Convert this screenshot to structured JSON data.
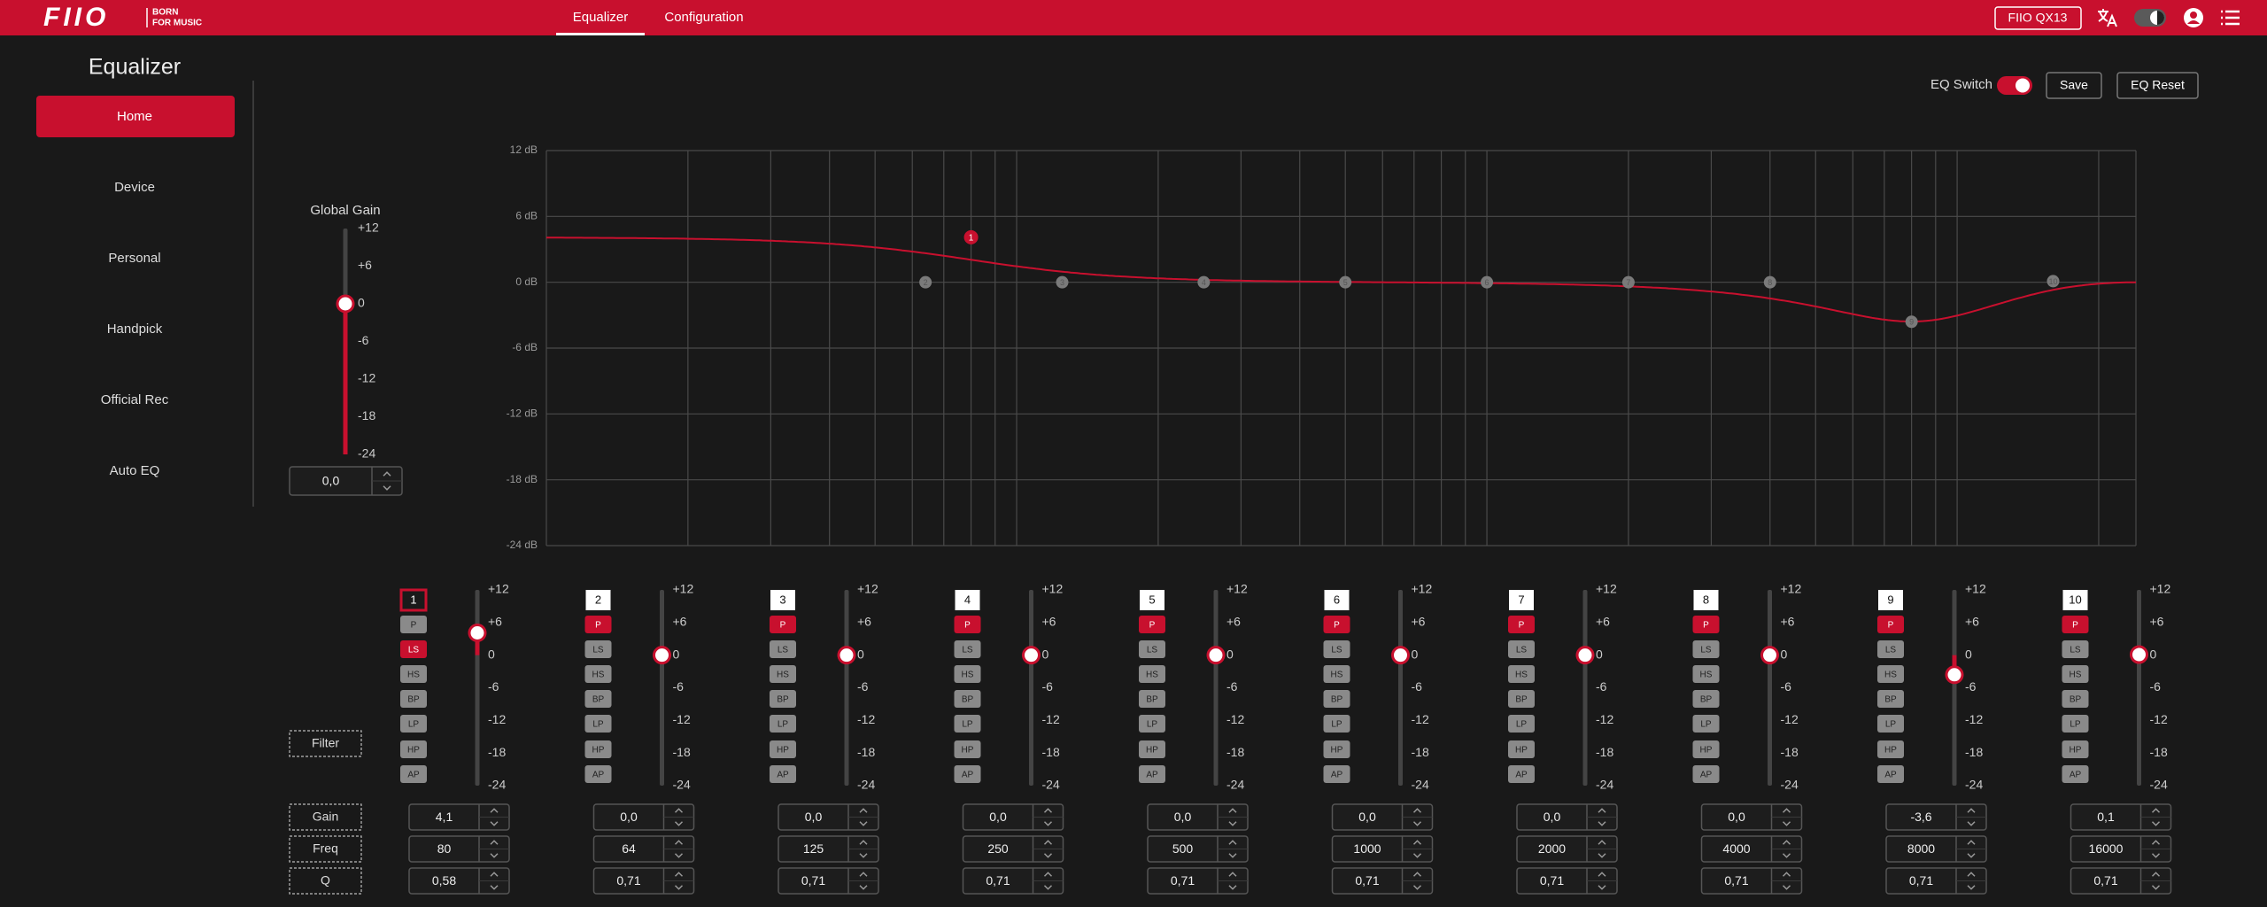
{
  "header": {
    "logo": "FIIO",
    "slogan": [
      "BORN",
      "FOR MUSIC"
    ],
    "tabs": [
      "Equalizer",
      "Configuration"
    ],
    "active_tab": "Equalizer",
    "device": "FIIO QX13"
  },
  "sidebar": {
    "title": "Equalizer",
    "items": [
      "Home",
      "Device",
      "Personal",
      "Handpick",
      "Official Rec",
      "Auto EQ"
    ],
    "active": "Home"
  },
  "toolbar": {
    "switch_label": "EQ Switch",
    "switch_on": true,
    "buttons": [
      "Save",
      "EQ Reset"
    ]
  },
  "global_gain": {
    "label": "Global Gain",
    "ticks": [
      {
        "value": 12,
        "label": "+12"
      },
      {
        "value": 6,
        "label": "+6"
      },
      0,
      -6,
      -12,
      -18,
      -24
    ],
    "value": {
      "value": 0,
      "label": "0,0"
    }
  },
  "graph": {
    "xlim": [
      10,
      24000
    ],
    "log_x": true,
    "yticks": [
      {
        "value": 12,
        "label": "12 dB"
      },
      {
        "value": 6,
        "label": "6 dB"
      },
      {
        "value": 0,
        "label": "0 dB"
      },
      {
        "value": -6,
        "label": "-6 dB"
      },
      {
        "value": -12,
        "label": "-12 dB"
      },
      {
        "value": -18,
        "label": "-18 dB"
      },
      {
        "value": -24,
        "label": "-24 dB"
      }
    ],
    "curve_color": "#c8102e"
  },
  "band_scale": {
    "ticks": [
      {
        "value": 12,
        "label": "+12"
      },
      {
        "value": 6,
        "label": "+6"
      },
      0,
      -6,
      -12,
      -18,
      -24
    ]
  },
  "row_labels": {
    "filter": "Filter",
    "gain": "Gain",
    "freq": "Freq",
    "q": "Q"
  },
  "filter_types": [
    "P",
    "LS",
    "HS",
    "BP",
    "LP",
    "HP",
    "AP"
  ],
  "selected_band": 1,
  "bands": [
    {
      "number": 1,
      "filter": "LS",
      "gain": {
        "value": 4.1,
        "label": "4,1"
      },
      "freq": 80,
      "q": {
        "value": 0.58,
        "label": "0,58"
      }
    },
    {
      "number": 2,
      "filter": "P",
      "gain": {
        "value": 0,
        "label": "0,0"
      },
      "freq": 64,
      "q": {
        "value": 0.71,
        "label": "0,71"
      }
    },
    {
      "number": 3,
      "filter": "P",
      "gain": {
        "value": 0,
        "label": "0,0"
      },
      "freq": 125,
      "q": {
        "value": 0.71,
        "label": "0,71"
      }
    },
    {
      "number": 4,
      "filter": "P",
      "gain": {
        "value": 0,
        "label": "0,0"
      },
      "freq": 250,
      "q": {
        "value": 0.71,
        "label": "0,71"
      }
    },
    {
      "number": 5,
      "filter": "P",
      "gain": {
        "value": 0,
        "label": "0,0"
      },
      "freq": 500,
      "q": {
        "value": 0.71,
        "label": "0,71"
      }
    },
    {
      "number": 6,
      "filter": "P",
      "gain": {
        "value": 0,
        "label": "0,0"
      },
      "freq": 1000,
      "q": {
        "value": 0.71,
        "label": "0,71"
      }
    },
    {
      "number": 7,
      "filter": "P",
      "gain": {
        "value": 0,
        "label": "0,0"
      },
      "freq": 2000,
      "q": {
        "value": 0.71,
        "label": "0,71"
      }
    },
    {
      "number": 8,
      "filter": "P",
      "gain": {
        "value": 0,
        "label": "0,0"
      },
      "freq": 4000,
      "q": {
        "value": 0.71,
        "label": "0,71"
      }
    },
    {
      "number": 9,
      "filter": "P",
      "gain": {
        "value": -3.6,
        "label": "-3,6"
      },
      "freq": 8000,
      "q": {
        "value": 0.71,
        "label": "0,71"
      }
    },
    {
      "number": 10,
      "filter": "P",
      "gain": {
        "value": 0.1,
        "label": "0,1"
      },
      "freq": 16000,
      "q": {
        "value": 0.71,
        "label": "0,71"
      }
    }
  ]
}
